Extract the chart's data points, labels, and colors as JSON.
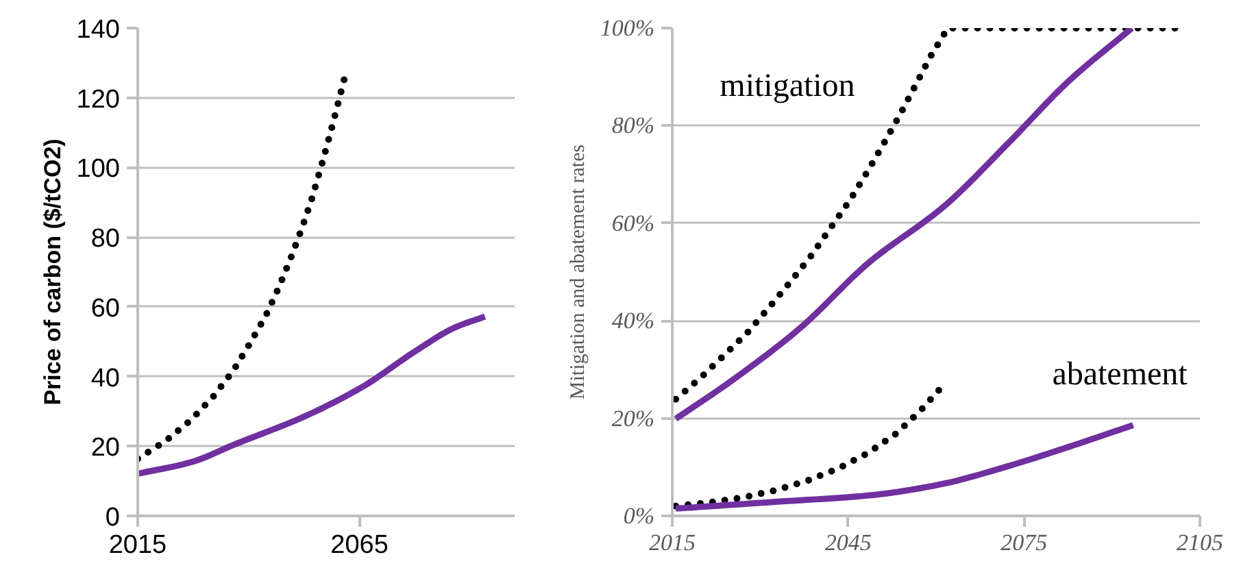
{
  "chart_data": [
    {
      "type": "line",
      "ylabel": "Price of carbon ($/tCO2)",
      "xlim": [
        2015,
        2100
      ],
      "xticks": [
        2015,
        2065
      ],
      "ylim": [
        0,
        140
      ],
      "yticks": [
        0,
        20,
        40,
        60,
        80,
        100,
        120,
        140
      ],
      "grid": "y",
      "series": [
        {
          "color": "#000000",
          "line_style": "dotted",
          "x": [
            2015,
            2021.3,
            2027,
            2032,
            2036.6,
            2040.3,
            2043.9,
            2046.9,
            2049.6,
            2052.1,
            2054.4,
            2056.4,
            2058.3,
            2060.1,
            2061.9
          ],
          "values": [
            16.4,
            21.5,
            27.5,
            34.2,
            41.8,
            49.5,
            57.5,
            65.8,
            74.3,
            82.8,
            91.6,
            100.4,
            109.2,
            118,
            127
          ]
        },
        {
          "color": "#7030a0",
          "line_style": "solid",
          "x": [
            2015,
            2027,
            2037.4,
            2052,
            2065.5,
            2078,
            2086.4,
            2093.3
          ],
          "values": [
            12.1,
            15.4,
            20.8,
            28.2,
            36.9,
            47.6,
            54,
            57.2
          ]
        }
      ]
    },
    {
      "type": "line",
      "ylabel": "Mitigation and abatement rates",
      "xlim": [
        2015,
        2105
      ],
      "xticks": [
        2015,
        2045,
        2075,
        2105
      ],
      "ylim": [
        0,
        100
      ],
      "yticks": [
        {
          "value": 0,
          "label": "0%"
        },
        {
          "value": 20,
          "label": "20%"
        },
        {
          "value": 40,
          "label": "40%"
        },
        {
          "value": 60,
          "label": "60%"
        },
        {
          "value": 80,
          "label": "80%"
        },
        {
          "value": 100,
          "label": "100%"
        }
      ],
      "grid": "y",
      "annotations": [
        "mitigation",
        "abatement"
      ],
      "series": [
        {
          "color": "#000000",
          "line_style": "dotted",
          "x": [
            2015.6,
            2019.9,
            2024,
            2028,
            2031.7,
            2035.3,
            2038.8,
            2042.1,
            2045.3,
            2048.3,
            2051.1,
            2053.9,
            2056.5,
            2059.1,
            2062,
            2102.2
          ],
          "values": [
            23.9,
            28.4,
            33.1,
            37.8,
            43,
            48.2,
            53.5,
            59.2,
            64.7,
            70.6,
            76.4,
            82.4,
            88.3,
            94.3,
            100,
            100
          ]
        },
        {
          "color": "#7030a0",
          "line_style": "solid",
          "x": [
            2015.6,
            2025,
            2036.8,
            2048.6,
            2061.3,
            2072.3,
            2082.5,
            2093.4
          ],
          "values": [
            19.9,
            27.6,
            38.5,
            52,
            63.4,
            76.4,
            89,
            100
          ]
        },
        {
          "color": "#000000",
          "line_style": "dotted",
          "x": [
            2015.6,
            2021,
            2026.8,
            2032.5,
            2038,
            2043.3,
            2048.4,
            2053.1,
            2057.2,
            2061.1
          ],
          "values": [
            2,
            2.7,
            3.7,
            5.2,
            7.2,
            9.7,
            12.9,
            16.8,
            21.4,
            26.6
          ]
        },
        {
          "color": "#7030a0",
          "line_style": "solid",
          "x": [
            2015.6,
            2032.9,
            2048.6,
            2060.5,
            2072.3,
            2082.5,
            2093.6
          ],
          "values": [
            1.5,
            2.9,
            4.2,
            6.4,
            10.2,
            14.1,
            18.6
          ]
        }
      ]
    }
  ]
}
